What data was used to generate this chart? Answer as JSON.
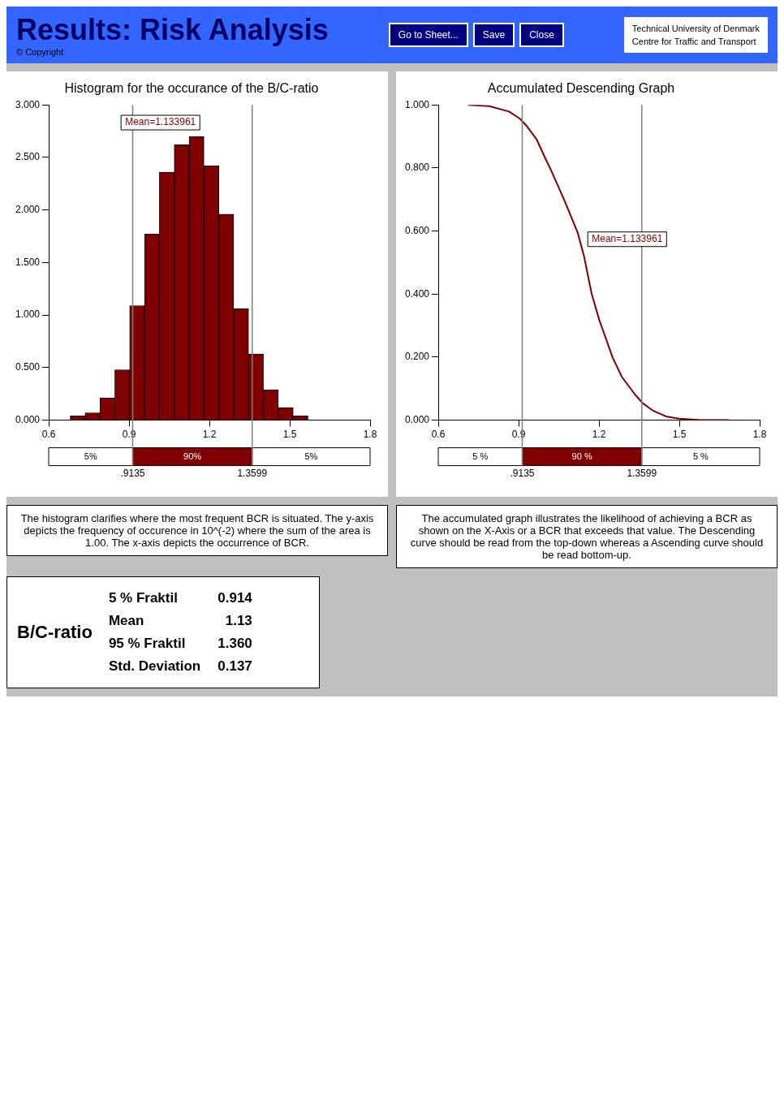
{
  "chart_data": [
    {
      "type": "other",
      "title": "Results: Risk Analysis",
      "annotations": [
        "© Copyright",
        "Go to Sheet...",
        "Save",
        "Close",
        "Technical University of Denmark",
        "Centre for Traffic and Transport"
      ]
    },
    {
      "type": "histogram",
      "title": "Histogram for the occurance of the B/C-ratio",
      "color": "#800000",
      "bins": [
        0.68,
        0.736,
        0.791,
        0.847,
        0.902,
        0.958,
        1.013,
        1.069,
        1.124,
        1.18,
        1.235,
        1.291,
        1.346,
        1.402,
        1.457,
        1.513,
        1.568
      ],
      "values": [
        0.04,
        0.07,
        0.21,
        0.48,
        1.09,
        1.77,
        2.36,
        2.62,
        2.7,
        2.42,
        1.96,
        1.06,
        0.63,
        0.29,
        0.12,
        0.04
      ],
      "xlim": [
        0.6,
        1.8
      ],
      "xticks": [
        0.6,
        0.9,
        1.2,
        1.5,
        1.8
      ],
      "ylim": [
        0,
        3
      ],
      "yticks": [
        {
          "value": 0,
          "label": "0.000"
        },
        {
          "value": 0.5,
          "label": "0.500"
        },
        {
          "value": 1,
          "label": "1.000"
        },
        {
          "value": 1.5,
          "label": "1.500"
        },
        {
          "value": 2,
          "label": "2.000"
        },
        {
          "value": 2.5,
          "label": "2.500"
        },
        {
          "value": 3,
          "label": "3.000"
        }
      ],
      "grid": false,
      "legend": false,
      "ref_lines": [
        {
          "axis": "x",
          "value": 0.9135,
          "label": ".9135",
          "color": "#808080"
        },
        {
          "axis": "x",
          "value": 1.3599,
          "label": "1.3599",
          "color": "#808080"
        }
      ],
      "annotations": [
        {
          "text": "Mean=1.133961",
          "x": 1.133961,
          "y": 2.7
        },
        "5%",
        "90%",
        "5%",
        "The histogram clarifies where the most frequent BCR is situated. The y-axis depicts the frequency of occurence in 10^(-2) where the sum of the area is 1.00. The x-axis depicts the occurrence of BCR."
      ]
    },
    {
      "type": "line",
      "title": "Accumulated Descending Graph",
      "series": [
        {
          "color": "#800000",
          "x": [
            0.711,
            0.79,
            0.864,
            0.905,
            0.93,
            0.967,
            1.0,
            1.021,
            1.07,
            1.12,
            1.144,
            1.173,
            1.202,
            1.251,
            1.285,
            1.334,
            1.363,
            1.4,
            1.45,
            1.499,
            1.573,
            1.685
          ],
          "values": [
            1.0,
            0.996,
            0.979,
            0.956,
            0.933,
            0.891,
            0.83,
            0.793,
            0.699,
            0.596,
            0.521,
            0.4,
            0.316,
            0.199,
            0.138,
            0.082,
            0.054,
            0.031,
            0.012,
            0.005,
            0.001,
            0.0
          ]
        }
      ],
      "xlim": [
        0.6,
        1.8
      ],
      "xticks": [
        0.6,
        0.9,
        1.2,
        1.5,
        1.8
      ],
      "ylim": [
        0,
        1
      ],
      "yticks": [
        {
          "value": 0,
          "label": "0.000"
        },
        {
          "value": 0.2,
          "label": "0.200"
        },
        {
          "value": 0.4,
          "label": "0.400"
        },
        {
          "value": 0.6,
          "label": "0.600"
        },
        {
          "value": 0.8,
          "label": "0.800"
        },
        {
          "value": 1,
          "label": "1.000"
        }
      ],
      "grid": false,
      "legend": false,
      "ref_lines": [
        {
          "axis": "x",
          "value": 0.9135,
          "label": ".9135",
          "color": "#808080"
        },
        {
          "axis": "x",
          "value": 1.3599,
          "label": "1.3599",
          "color": "#808080"
        }
      ],
      "annotations": [
        {
          "text": "Mean=1.133961",
          "x": 1.133961,
          "y": 0.53
        },
        "5 %",
        "90 %",
        "5 %",
        "The accumulated graph illustrates the likelihood of achieving a BCR as shown on the X-Axis or a BCR that exceeds that value. The Descending curve should be read from the top-down whereas a Ascending curve should be read bottom-up."
      ]
    },
    {
      "type": "other",
      "title": "B/C-ratio",
      "categories": [
        "5 % Fraktil",
        "Mean",
        "95 % Fraktil",
        "Std. Deviation"
      ],
      "value_labels": [
        "0.914",
        "1.13",
        "1.360",
        "0.137"
      ]
    }
  ]
}
